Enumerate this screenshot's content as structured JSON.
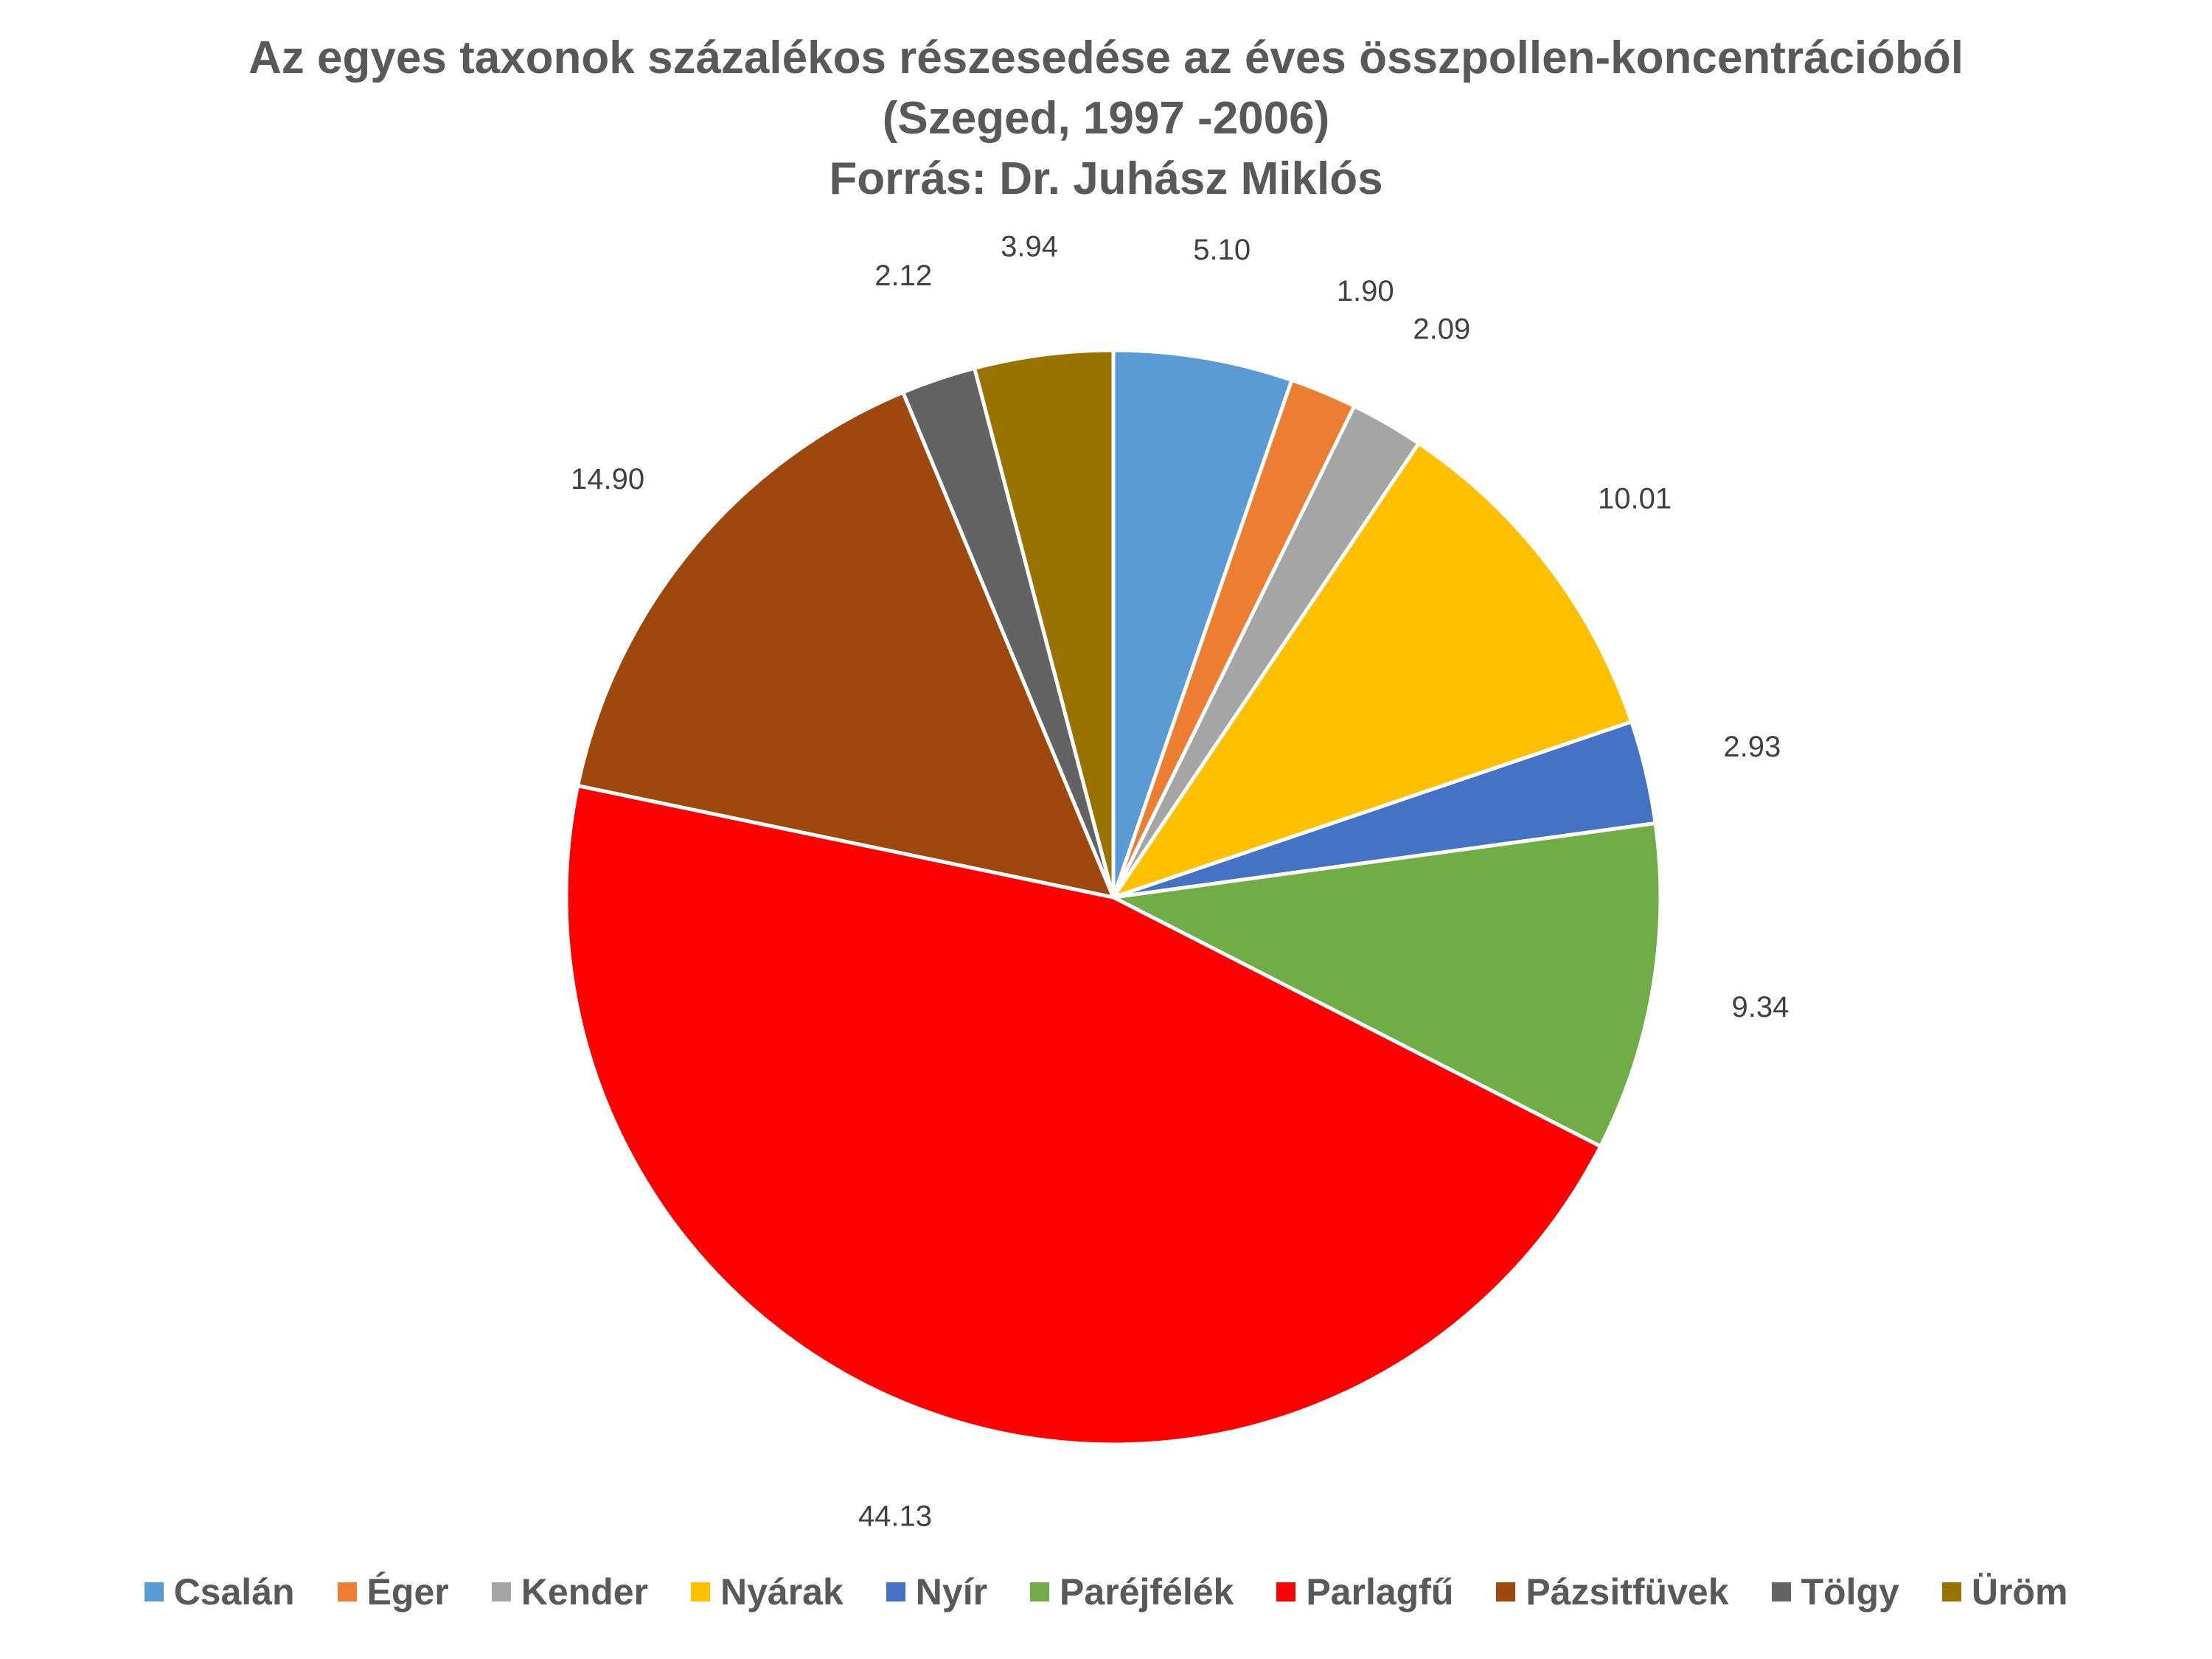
{
  "chart_data": {
    "type": "pie",
    "title": [
      "Az egyes taxonok százalékos részesedése az éves összpollen-koncentrációból",
      "(Szeged, 1997 -2006)",
      "Forrás: Dr. Juhász Miklós"
    ],
    "categories": [
      "Csalán",
      "Éger",
      "Kender",
      "Nyárak",
      "Nyír",
      "Paréjfélék",
      "Parlagfű",
      "Pázsitfüvek",
      "Tölgy",
      "Üröm"
    ],
    "values": [
      5.1,
      1.9,
      2.09,
      10.01,
      2.93,
      9.34,
      44.13,
      14.9,
      2.12,
      3.94
    ],
    "data_labels": [
      "5.10",
      "1.90",
      "2.09",
      "10.01",
      "2.93",
      "9.34",
      "44.13",
      "14.90",
      "2.12",
      "3.94"
    ],
    "colors": [
      "#5B9BD5",
      "#ED7D31",
      "#A5A5A5",
      "#FFC000",
      "#4472C4",
      "#70AD47",
      "#FF0000",
      "#9E480E",
      "#636363",
      "#997300"
    ],
    "start_angle": "12 o'clock",
    "direction": "clockwise",
    "legend_position": "bottom"
  }
}
